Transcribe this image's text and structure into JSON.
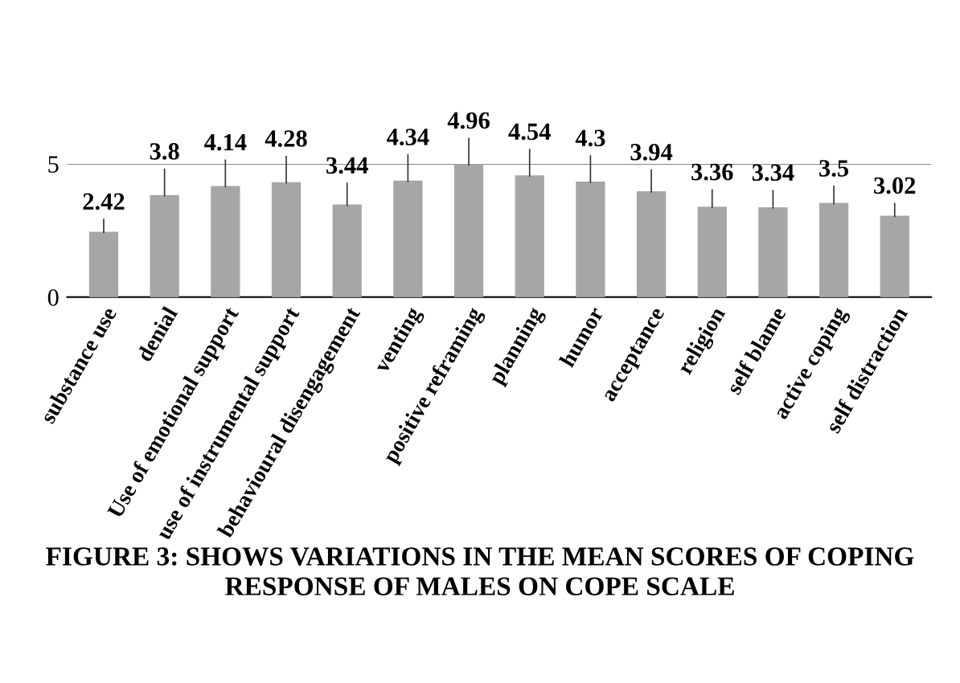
{
  "chart_data": {
    "type": "bar",
    "title": "FIGURE 3: SHOWS VARIATIONS IN THE MEAN SCORES OF COPING RESPONSE OF MALES ON COPE SCALE",
    "categories": [
      "substance use",
      "denial",
      "Use of emotional support",
      "use of instrumental support",
      "behavioural disengagement",
      "venting",
      "positive reframing",
      "planning",
      "humor",
      "acceptance",
      "religion",
      "self blame",
      "active coping",
      "self distraction"
    ],
    "values": [
      2.42,
      3.8,
      4.14,
      4.28,
      3.44,
      4.34,
      4.96,
      4.54,
      4.3,
      3.94,
      3.36,
      3.34,
      3.5,
      3.02
    ],
    "color": "#a6a6a6",
    "ylim": [
      0,
      5
    ],
    "yticks": [
      0,
      5
    ],
    "grid": "y",
    "data_labels": true
  }
}
